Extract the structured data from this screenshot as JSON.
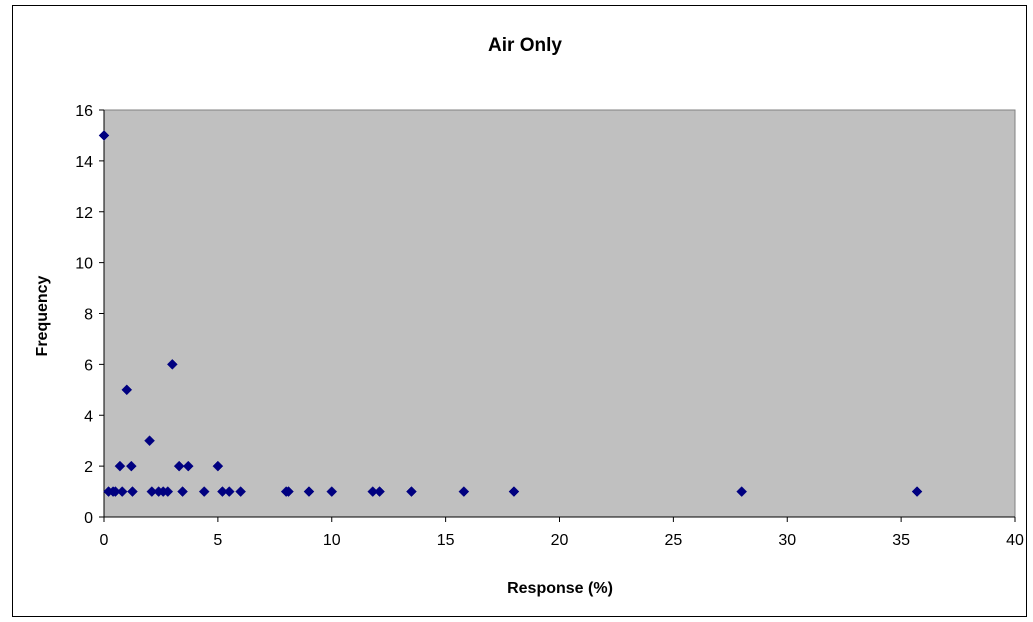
{
  "chart_data": {
    "type": "scatter",
    "title": "Air Only",
    "xlabel": "Response (%)",
    "ylabel": "Frequency",
    "xlim": [
      0,
      40
    ],
    "ylim": [
      0,
      16
    ],
    "xticks": [
      0,
      5,
      10,
      15,
      20,
      25,
      30,
      35,
      40
    ],
    "yticks": [
      0,
      2,
      4,
      6,
      8,
      10,
      12,
      14,
      16
    ],
    "grid": false,
    "legend": "none",
    "plot_background": "#c0c0c0",
    "marker": "diamond",
    "marker_color": "#000080",
    "points": [
      [
        0,
        15
      ],
      [
        0.2,
        1
      ],
      [
        0.4,
        1
      ],
      [
        0.5,
        1
      ],
      [
        0.7,
        2
      ],
      [
        0.8,
        1
      ],
      [
        1,
        5
      ],
      [
        1.2,
        2
      ],
      [
        1.25,
        1
      ],
      [
        2,
        3
      ],
      [
        2.1,
        1
      ],
      [
        2.4,
        1
      ],
      [
        2.6,
        1
      ],
      [
        2.8,
        1
      ],
      [
        3,
        6
      ],
      [
        3.3,
        2
      ],
      [
        3.45,
        1
      ],
      [
        3.7,
        2
      ],
      [
        4.4,
        1
      ],
      [
        5,
        2
      ],
      [
        5.2,
        1
      ],
      [
        5.5,
        1
      ],
      [
        6,
        1
      ],
      [
        8,
        1
      ],
      [
        8.1,
        1
      ],
      [
        9,
        1
      ],
      [
        10,
        1
      ],
      [
        11.8,
        1
      ],
      [
        12.1,
        1
      ],
      [
        13.5,
        1
      ],
      [
        15.8,
        1
      ],
      [
        18,
        1
      ],
      [
        28,
        1
      ],
      [
        35.7,
        1
      ]
    ]
  }
}
